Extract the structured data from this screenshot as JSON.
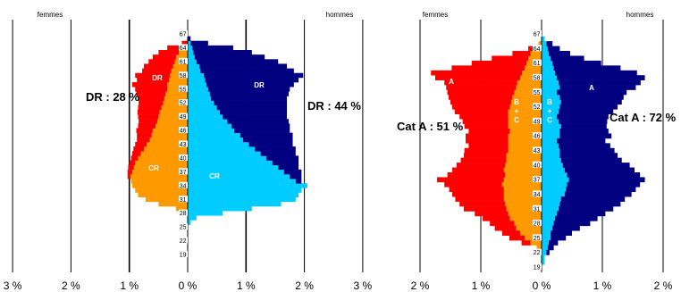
{
  "colors": {
    "femmes_top": "#ff0000",
    "femmes_bottom": "#ff9900",
    "hommes_top": "#000080",
    "hommes_bottom": "#00ccff"
  },
  "chart_data": [
    {
      "type": "bar",
      "orientation": "horizontal-pyramid",
      "left_label": "femmes",
      "right_label": "hommes",
      "x_ticks": [
        "3 %",
        "2 %",
        "1 %",
        "0 %",
        "1 %",
        "2 %",
        "3 %"
      ],
      "xlim": [
        -3,
        3
      ],
      "age_labels": [
        "19",
        "22",
        "25",
        "28",
        "31",
        "34",
        "37",
        "40",
        "43",
        "46",
        "49",
        "52",
        "55",
        "58",
        "61",
        "64",
        "67"
      ],
      "age_range": [
        19,
        67
      ],
      "annotations": {
        "left": "DR : 28 %",
        "right": "DR : 44 %",
        "left_top_seg": "DR",
        "left_bottom_seg": "CR",
        "right_top_seg": "DR",
        "right_bottom_seg": "CR"
      },
      "series": [
        {
          "name": "femmes CR",
          "ages": [
            28,
            29,
            30,
            31,
            32,
            33,
            34,
            35,
            36,
            37,
            38,
            39,
            40,
            41,
            42,
            43,
            44,
            45,
            46,
            47,
            48,
            49,
            50,
            51,
            52,
            53,
            54,
            55,
            56,
            57,
            58,
            59,
            60,
            61,
            62,
            63,
            64
          ],
          "values": [
            0.08,
            0.2,
            0.5,
            0.72,
            0.85,
            0.9,
            0.95,
            0.97,
            0.98,
            0.95,
            0.92,
            0.9,
            0.85,
            0.8,
            0.75,
            0.7,
            0.65,
            0.62,
            0.6,
            0.55,
            0.52,
            0.5,
            0.48,
            0.45,
            0.42,
            0.4,
            0.38,
            0.35,
            0.35,
            0.32,
            0.3,
            0.28,
            0.25,
            0.22,
            0.2,
            0.15,
            0.1
          ]
        },
        {
          "name": "femmes DR",
          "ages": [
            36,
            37,
            38,
            39,
            40,
            41,
            42,
            43,
            44,
            45,
            46,
            47,
            48,
            49,
            50,
            51,
            52,
            53,
            54,
            55,
            56,
            57,
            58,
            59,
            60,
            61,
            62,
            63,
            64,
            65
          ],
          "values": [
            0.05,
            0.08,
            0.1,
            0.1,
            0.12,
            0.15,
            0.18,
            0.2,
            0.22,
            0.25,
            0.28,
            0.3,
            0.32,
            0.35,
            0.38,
            0.4,
            0.42,
            0.45,
            0.5,
            0.55,
            0.6,
            0.55,
            0.6,
            0.5,
            0.5,
            0.45,
            0.4,
            0.35,
            0.25,
            0.1
          ]
        },
        {
          "name": "hommes CR",
          "ages": [
            26,
            27,
            28,
            29,
            30,
            31,
            32,
            33,
            34,
            35,
            36,
            37,
            38,
            39,
            40,
            41,
            42,
            43,
            44,
            45,
            46,
            47,
            48,
            49,
            50,
            51,
            52,
            53,
            54,
            55,
            56,
            57,
            58,
            59,
            60,
            61,
            62,
            63,
            64,
            65
          ],
          "values": [
            0.05,
            0.15,
            0.6,
            1.1,
            1.6,
            1.85,
            1.9,
            1.95,
            2.05,
            1.85,
            1.75,
            1.65,
            1.55,
            1.45,
            1.35,
            1.25,
            1.15,
            1.05,
            0.95,
            0.9,
            0.8,
            0.75,
            0.68,
            0.6,
            0.55,
            0.5,
            0.45,
            0.4,
            0.38,
            0.35,
            0.32,
            0.3,
            0.28,
            0.22,
            0.2,
            0.15,
            0.12,
            0.1,
            0.08,
            0.05
          ]
        },
        {
          "name": "hommes DR",
          "ages": [
            35,
            36,
            37,
            38,
            39,
            40,
            41,
            42,
            43,
            44,
            45,
            46,
            47,
            48,
            49,
            50,
            51,
            52,
            53,
            54,
            55,
            56,
            57,
            58,
            59,
            60,
            61,
            62,
            63,
            64,
            65,
            66
          ],
          "values": [
            0.1,
            0.2,
            0.3,
            0.35,
            0.45,
            0.55,
            0.6,
            0.7,
            0.75,
            0.85,
            0.9,
            0.95,
            1.0,
            1.05,
            1.1,
            1.15,
            1.2,
            1.25,
            1.3,
            1.35,
            1.4,
            1.5,
            1.6,
            1.7,
            1.6,
            1.5,
            1.4,
            1.2,
            1.0,
            0.7,
            0.3,
            0.05
          ]
        }
      ]
    },
    {
      "type": "bar",
      "orientation": "horizontal-pyramid",
      "left_label": "femmes",
      "right_label": "hommes",
      "x_ticks": [
        "2 %",
        "1 %",
        "0 %",
        "1 %",
        "2 %"
      ],
      "xlim": [
        -2,
        2
      ],
      "age_labels": [
        "19",
        "22",
        "25",
        "28",
        "31",
        "34",
        "37",
        "40",
        "43",
        "46",
        "49",
        "52",
        "55",
        "58",
        "61",
        "64",
        "67"
      ],
      "age_range": [
        19,
        67
      ],
      "annotations": {
        "left": "Cat A : 51 %",
        "right": "Cat A : 72 %",
        "left_top_seg": "A",
        "left_bottom_seg_1": "B",
        "left_bottom_seg_2": "+",
        "left_bottom_seg_3": "C",
        "right_top_seg": "A",
        "right_bottom_seg_1": "B",
        "right_bottom_seg_2": "+",
        "right_bottom_seg_3": "C"
      },
      "series": [
        {
          "name": "femmes B + C",
          "ages": [
            22,
            23,
            24,
            25,
            26,
            27,
            28,
            29,
            30,
            31,
            32,
            33,
            34,
            35,
            36,
            37,
            38,
            39,
            40,
            41,
            42,
            43,
            44,
            45,
            46,
            47,
            48,
            49,
            50,
            51,
            52,
            53,
            54,
            55,
            56,
            57,
            58,
            59,
            60,
            61,
            62,
            63,
            64,
            65
          ],
          "values": [
            0.02,
            0.08,
            0.18,
            0.28,
            0.35,
            0.42,
            0.45,
            0.52,
            0.55,
            0.58,
            0.6,
            0.62,
            0.62,
            0.62,
            0.65,
            0.62,
            0.6,
            0.62,
            0.6,
            0.58,
            0.58,
            0.55,
            0.55,
            0.55,
            0.55,
            0.52,
            0.55,
            0.55,
            0.55,
            0.55,
            0.52,
            0.5,
            0.48,
            0.45,
            0.42,
            0.4,
            0.35,
            0.32,
            0.28,
            0.25,
            0.22,
            0.18,
            0.12,
            0.05
          ]
        },
        {
          "name": "femmes A",
          "ages": [
            24,
            25,
            26,
            27,
            28,
            29,
            30,
            31,
            32,
            33,
            34,
            35,
            36,
            37,
            38,
            39,
            40,
            41,
            42,
            43,
            44,
            45,
            46,
            47,
            48,
            49,
            50,
            51,
            52,
            53,
            54,
            55,
            56,
            57,
            58,
            59,
            60,
            61,
            62,
            63,
            64
          ],
          "values": [
            0.15,
            0.25,
            0.3,
            0.35,
            0.4,
            0.45,
            0.55,
            0.7,
            0.75,
            0.8,
            0.85,
            0.9,
            0.95,
            1.1,
            0.95,
            0.85,
            0.8,
            0.75,
            0.7,
            0.72,
            0.65,
            0.7,
            0.7,
            0.68,
            0.72,
            0.75,
            0.8,
            0.88,
            0.95,
            1.0,
            1.05,
            1.1,
            1.15,
            1.2,
            1.4,
            1.5,
            1.2,
            0.9,
            0.6,
            0.3,
            0.1
          ]
        },
        {
          "name": "hommes B + C",
          "ages": [
            20,
            21,
            22,
            23,
            24,
            25,
            26,
            27,
            28,
            29,
            30,
            31,
            32,
            33,
            34,
            35,
            36,
            37,
            38,
            39,
            40,
            41,
            42,
            43,
            44,
            45,
            46,
            47,
            48,
            49,
            50,
            51,
            52,
            53,
            54,
            55,
            56,
            57,
            58,
            59,
            60,
            61,
            62,
            63,
            64,
            65,
            66
          ],
          "values": [
            0.05,
            0.05,
            0.08,
            0.1,
            0.12,
            0.15,
            0.15,
            0.18,
            0.2,
            0.22,
            0.25,
            0.28,
            0.3,
            0.32,
            0.38,
            0.4,
            0.42,
            0.45,
            0.42,
            0.38,
            0.35,
            0.32,
            0.3,
            0.3,
            0.28,
            0.25,
            0.3,
            0.3,
            0.32,
            0.28,
            0.25,
            0.28,
            0.3,
            0.32,
            0.3,
            0.25,
            0.3,
            0.28,
            0.25,
            0.22,
            0.2,
            0.18,
            0.15,
            0.12,
            0.1,
            0.08,
            0.05
          ]
        },
        {
          "name": "hommes A",
          "ages": [
            22,
            23,
            24,
            25,
            26,
            27,
            28,
            29,
            30,
            31,
            32,
            33,
            34,
            35,
            36,
            37,
            38,
            39,
            40,
            41,
            42,
            43,
            44,
            45,
            46,
            47,
            48,
            49,
            50,
            51,
            52,
            53,
            54,
            55,
            56,
            57,
            58,
            59,
            60,
            61,
            62,
            63,
            64,
            65
          ],
          "values": [
            0.05,
            0.1,
            0.15,
            0.25,
            0.35,
            0.45,
            0.6,
            0.7,
            0.8,
            0.9,
            1.0,
            1.05,
            1.1,
            1.15,
            1.2,
            1.25,
            1.2,
            1.15,
            1.1,
            1.0,
            0.95,
            0.9,
            0.85,
            0.8,
            0.85,
            0.8,
            0.75,
            0.8,
            0.85,
            0.9,
            0.95,
            1.0,
            1.05,
            1.15,
            1.25,
            1.35,
            1.45,
            1.35,
            1.1,
            0.8,
            0.55,
            0.35,
            0.2,
            0.1
          ]
        }
      ]
    }
  ]
}
